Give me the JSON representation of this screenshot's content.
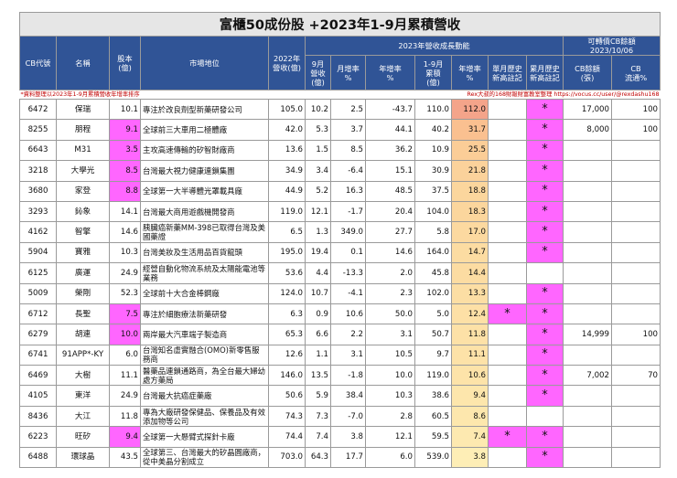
{
  "title": "富櫃50成份股 +2023年1-9月累積營收",
  "header": {
    "cb_code": "CB代號",
    "name": "名稱",
    "capital": "股本\n(億)",
    "market_position": "市場地位",
    "rev2022": "2022年\n營收(億)",
    "growth_group": "2023年營收成長動能",
    "sep_rev": "9月\n營收\n(億)",
    "mom": "月增率\n%",
    "yoy": "年增率\n%",
    "ytd_rev": "1-9月\n累積\n(億)",
    "ytd_yoy": "年增率\n%",
    "single_high": "單月歷史\n新高註記",
    "cum_high": "累月歷史\n新高註記",
    "cb_group": "可轉債CB餘額\n2023/10/06",
    "cb_balance": "CB餘額\n(張)",
    "cb_ratio": "CB\n流通%"
  },
  "note_left": "*資料整理以2023年1-9月累積營收年增率排序",
  "note_right": "Rex大叔的168財報財富教室整理 https://vocus.cc/user/@rexdashu168",
  "rows": [
    {
      "code": "6472",
      "name": "保瑞",
      "cap": "10.1",
      "pos": "專注於改良劑型新藥研發公司",
      "r22": "105.0",
      "m9": "10.2",
      "mom": "2.5",
      "yoy": "-43.7",
      "ytd": "110.0",
      "ytdy": "112.0",
      "sh": "",
      "ch": "*",
      "cb": "17,000",
      "cbp": "100",
      "capPink": false,
      "shade": "#f4a48a"
    },
    {
      "code": "8255",
      "name": "朋程",
      "cap": "9.1",
      "pos": "全球前三大車用二極體廠",
      "r22": "42.0",
      "m9": "5.3",
      "mom": "3.7",
      "yoy": "44.1",
      "ytd": "40.2",
      "ytdy": "31.7",
      "sh": "",
      "ch": "*",
      "cb": "8,000",
      "cbp": "100",
      "capPink": true,
      "shade": "#fac090"
    },
    {
      "code": "6643",
      "name": "M31",
      "cap": "3.5",
      "pos": "主攻高速傳輸的矽智財廠商",
      "r22": "13.6",
      "m9": "1.5",
      "mom": "8.5",
      "yoy": "36.2",
      "ytd": "10.9",
      "ytdy": "25.5",
      "sh": "",
      "ch": "*",
      "cb": "",
      "cbp": "",
      "capPink": true,
      "shade": "#fbcd97"
    },
    {
      "code": "3218",
      "name": "大學光",
      "cap": "8.5",
      "pos": "台灣最大視力健康連鎖集團",
      "r22": "34.9",
      "m9": "3.4",
      "mom": "-6.4",
      "yoy": "15.1",
      "ytd": "30.9",
      "ytdy": "21.8",
      "sh": "",
      "ch": "*",
      "cb": "",
      "cbp": "",
      "capPink": true,
      "shade": "#fbd29b"
    },
    {
      "code": "3680",
      "name": "家登",
      "cap": "8.8",
      "pos": "全球第一大半導體光罩載具廠",
      "r22": "44.9",
      "m9": "5.2",
      "mom": "16.3",
      "yoy": "48.5",
      "ytd": "37.5",
      "ytdy": "18.8",
      "sh": "",
      "ch": "*",
      "cb": "",
      "cbp": "",
      "capPink": true,
      "shade": "#fbd69d"
    },
    {
      "code": "3293",
      "name": "鈊象",
      "cap": "14.1",
      "pos": "台灣最大商用遊戲機開發商",
      "r22": "119.0",
      "m9": "12.1",
      "mom": "-1.7",
      "yoy": "20.4",
      "ytd": "104.0",
      "ytdy": "18.3",
      "sh": "",
      "ch": "*",
      "cb": "",
      "cbp": "",
      "capPink": false,
      "shade": "#fbd69d"
    },
    {
      "code": "4162",
      "name": "智擎",
      "cap": "14.6",
      "pos": "胰臟癌新藥MM-398已取得台灣及美國藥證",
      "r22": "6.5",
      "m9": "1.3",
      "mom": "349.0",
      "yoy": "27.7",
      "ytd": "5.8",
      "ytdy": "17.0",
      "sh": "",
      "ch": "*",
      "cb": "",
      "cbp": "",
      "capPink": false,
      "shade": "#fcd9a0"
    },
    {
      "code": "5904",
      "name": "寶雅",
      "cap": "10.3",
      "pos": "台灣美妝及生活用品百貨龍頭",
      "r22": "195.0",
      "m9": "19.4",
      "mom": "0.1",
      "yoy": "14.6",
      "ytd": "164.0",
      "ytdy": "14.7",
      "sh": "",
      "ch": "*",
      "cb": "",
      "cbp": "",
      "capPink": false,
      "shade": "#fcdca2"
    },
    {
      "code": "6125",
      "name": "廣運",
      "cap": "24.9",
      "pos": "經營自動化物流系統及太陽能電池等業務",
      "r22": "53.6",
      "m9": "4.4",
      "mom": "-13.3",
      "yoy": "2.0",
      "ytd": "45.8",
      "ytdy": "14.4",
      "sh": "",
      "ch": "",
      "cb": "",
      "cbp": "",
      "capPink": false,
      "shade": "#fcdca2"
    },
    {
      "code": "5009",
      "name": "榮剛",
      "cap": "52.3",
      "pos": "全球前十大合金棒鋼廠",
      "r22": "124.0",
      "m9": "10.7",
      "mom": "-4.1",
      "yoy": "2.3",
      "ytd": "102.0",
      "ytdy": "13.3",
      "sh": "",
      "ch": "*",
      "cb": "",
      "cbp": "",
      "capPink": false,
      "shade": "#fcdea4"
    },
    {
      "code": "6712",
      "name": "長聖",
      "cap": "7.5",
      "pos": "專注於細胞療法新藥研發",
      "r22": "6.3",
      "m9": "0.9",
      "mom": "10.6",
      "yoy": "50.0",
      "ytd": "5.0",
      "ytdy": "12.4",
      "sh": "*",
      "ch": "*",
      "cb": "",
      "cbp": "",
      "capPink": true,
      "shade": "#fde0a6"
    },
    {
      "code": "6279",
      "name": "胡連",
      "cap": "10.0",
      "pos": "兩岸最大汽車端子製造商",
      "r22": "65.3",
      "m9": "6.6",
      "mom": "2.2",
      "yoy": "3.1",
      "ytd": "50.7",
      "ytdy": "11.8",
      "sh": "",
      "ch": "*",
      "cb": "14,999",
      "cbp": "100",
      "capPink": true,
      "shade": "#fde1a7"
    },
    {
      "code": "6741",
      "name": "91APP*-KY",
      "cap": "6.0",
      "pos": "台灣知名虛實融合(OMO)新零售服務商",
      "r22": "12.6",
      "m9": "1.1",
      "mom": "3.1",
      "yoy": "10.5",
      "ytd": "9.7",
      "ytdy": "11.1",
      "sh": "",
      "ch": "*",
      "cb": "",
      "cbp": "",
      "capPink": false,
      "shade": "#fde2a8"
    },
    {
      "code": "6469",
      "name": "大樹",
      "cap": "11.1",
      "pos": "醫藥品連鎖通路商，為全台最大婦幼處方藥局",
      "r22": "146.0",
      "m9": "13.5",
      "mom": "-1.8",
      "yoy": "10.0",
      "ytd": "119.0",
      "ytdy": "10.6",
      "sh": "",
      "ch": "*",
      "cb": "7,002",
      "cbp": "70",
      "capPink": false,
      "shade": "#fde3a9"
    },
    {
      "code": "4105",
      "name": "東洋",
      "cap": "24.9",
      "pos": "台灣最大抗癌症藥廠",
      "r22": "50.6",
      "m9": "5.9",
      "mom": "38.4",
      "yoy": "10.3",
      "ytd": "38.6",
      "ytdy": "9.4",
      "sh": "",
      "ch": "*",
      "cb": "",
      "cbp": "",
      "capPink": false,
      "shade": "#fde6ac"
    },
    {
      "code": "8436",
      "name": "大江",
      "cap": "11.8",
      "pos": "專為大廠研發保健品、保養品及有效添加物等公司",
      "r22": "74.3",
      "m9": "7.3",
      "mom": "-7.0",
      "yoy": "2.8",
      "ytd": "60.5",
      "ytdy": "8.6",
      "sh": "",
      "ch": "",
      "cb": "",
      "cbp": "",
      "capPink": false,
      "shade": "#fde7ad"
    },
    {
      "code": "6223",
      "name": "旺矽",
      "cap": "9.4",
      "pos": "全球第一大懸臂式探針卡廠",
      "r22": "74.4",
      "m9": "7.4",
      "mom": "3.8",
      "yoy": "12.1",
      "ytd": "59.5",
      "ytdy": "7.4",
      "sh": "*",
      "ch": "*",
      "cb": "",
      "cbp": "",
      "capPink": true,
      "shade": "#fde9b0"
    },
    {
      "code": "6488",
      "name": "環球晶",
      "cap": "43.5",
      "pos": "全球第三、台灣最大的矽晶圓廠商，從中美晶分割成立",
      "r22": "703.0",
      "m9": "64.3",
      "mom": "17.7",
      "yoy": "6.0",
      "ytd": "539.0",
      "ytdy": "3.8",
      "sh": "",
      "ch": "*",
      "cb": "",
      "cbp": "",
      "capPink": false,
      "shade": "#feeeb6"
    }
  ]
}
